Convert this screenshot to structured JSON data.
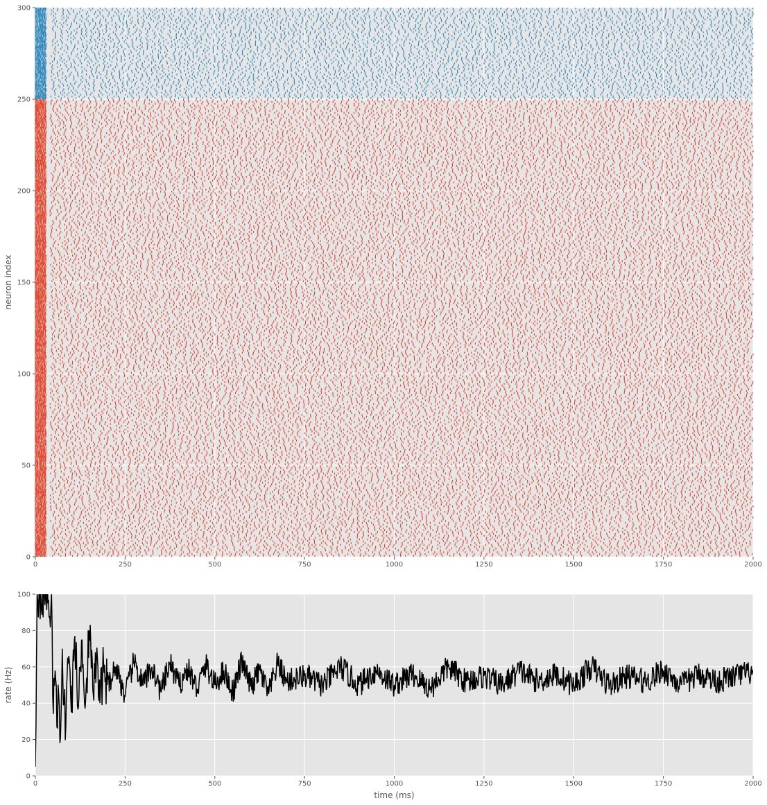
{
  "chart_data": [
    {
      "type": "scatter",
      "subtype": "raster",
      "ylabel": "neuron index",
      "xlim": [
        0,
        2000
      ],
      "ylim": [
        0,
        300
      ],
      "grid": true,
      "xticks": [
        "0",
        "250",
        "500",
        "750",
        "1000",
        "1250",
        "1500",
        "1750",
        "2000"
      ],
      "yticks": [
        "0",
        "50",
        "100",
        "150",
        "200",
        "250",
        "300"
      ],
      "populations": [
        {
          "neuron_range": [
            0,
            250
          ],
          "color": "#E24A33"
        },
        {
          "neuron_range": [
            250,
            300
          ],
          "color": "#348ABD"
        }
      ],
      "initial_burst_ms": [
        0,
        30
      ],
      "approx_spike_interval_ms": 18
    },
    {
      "type": "line",
      "xlabel": "time (ms)",
      "ylabel": "rate (Hz)",
      "xlim": [
        0,
        2000
      ],
      "ylim": [
        0,
        100
      ],
      "grid": true,
      "color": "#000000",
      "xticks": [
        "0",
        "250",
        "500",
        "750",
        "1000",
        "1250",
        "1500",
        "1750",
        "2000"
      ],
      "yticks": [
        "0",
        "20",
        "40",
        "60",
        "80",
        "100"
      ],
      "x": [
        0,
        5,
        10,
        15,
        20,
        25,
        30,
        35,
        40,
        45,
        50,
        55,
        60,
        65,
        70,
        75,
        80,
        85,
        90,
        95,
        100,
        110,
        120,
        130,
        140,
        150,
        160,
        170,
        180,
        190,
        200,
        225,
        250,
        275,
        300,
        325,
        350,
        375,
        400,
        425,
        450,
        475,
        500,
        525,
        550,
        575,
        600,
        625,
        650,
        675,
        700,
        750,
        800,
        850,
        900,
        950,
        1000,
        1050,
        1100,
        1150,
        1200,
        1250,
        1300,
        1350,
        1400,
        1450,
        1500,
        1550,
        1600,
        1650,
        1700,
        1750,
        1800,
        1850,
        1900,
        1950,
        2000
      ],
      "y": [
        5,
        100,
        100,
        100,
        100,
        100,
        100,
        95,
        88,
        100,
        34,
        58,
        27,
        45,
        21,
        70,
        40,
        28,
        65,
        62,
        35,
        77,
        38,
        75,
        42,
        80,
        48,
        64,
        40,
        62,
        50,
        60,
        44,
        63,
        50,
        60,
        46,
        62,
        50,
        59,
        48,
        61,
        50,
        58,
        46,
        63,
        49,
        58,
        45,
        62,
        52,
        55,
        50,
        60,
        50,
        58,
        50,
        56,
        48,
        60,
        52,
        55,
        50,
        58,
        52,
        56,
        50,
        60,
        50,
        55,
        52,
        58,
        50,
        56,
        52,
        55,
        57
      ]
    }
  ]
}
